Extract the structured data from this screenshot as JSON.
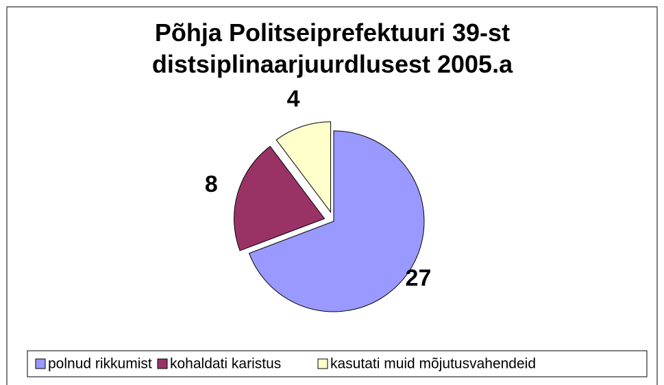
{
  "chart_data": {
    "type": "pie",
    "title": "Põhja Politseiprefektuuri 39-st distsiplinaarjuurdlusest 2005.a",
    "categories": [
      "polnud rikkumist",
      "kohaldati karistus",
      "kasutati muid mõjutusvahendeid"
    ],
    "values": [
      27,
      8,
      4
    ],
    "colors": [
      "#9999ff",
      "#993366",
      "#ffffcc"
    ],
    "legend": "bottom"
  }
}
